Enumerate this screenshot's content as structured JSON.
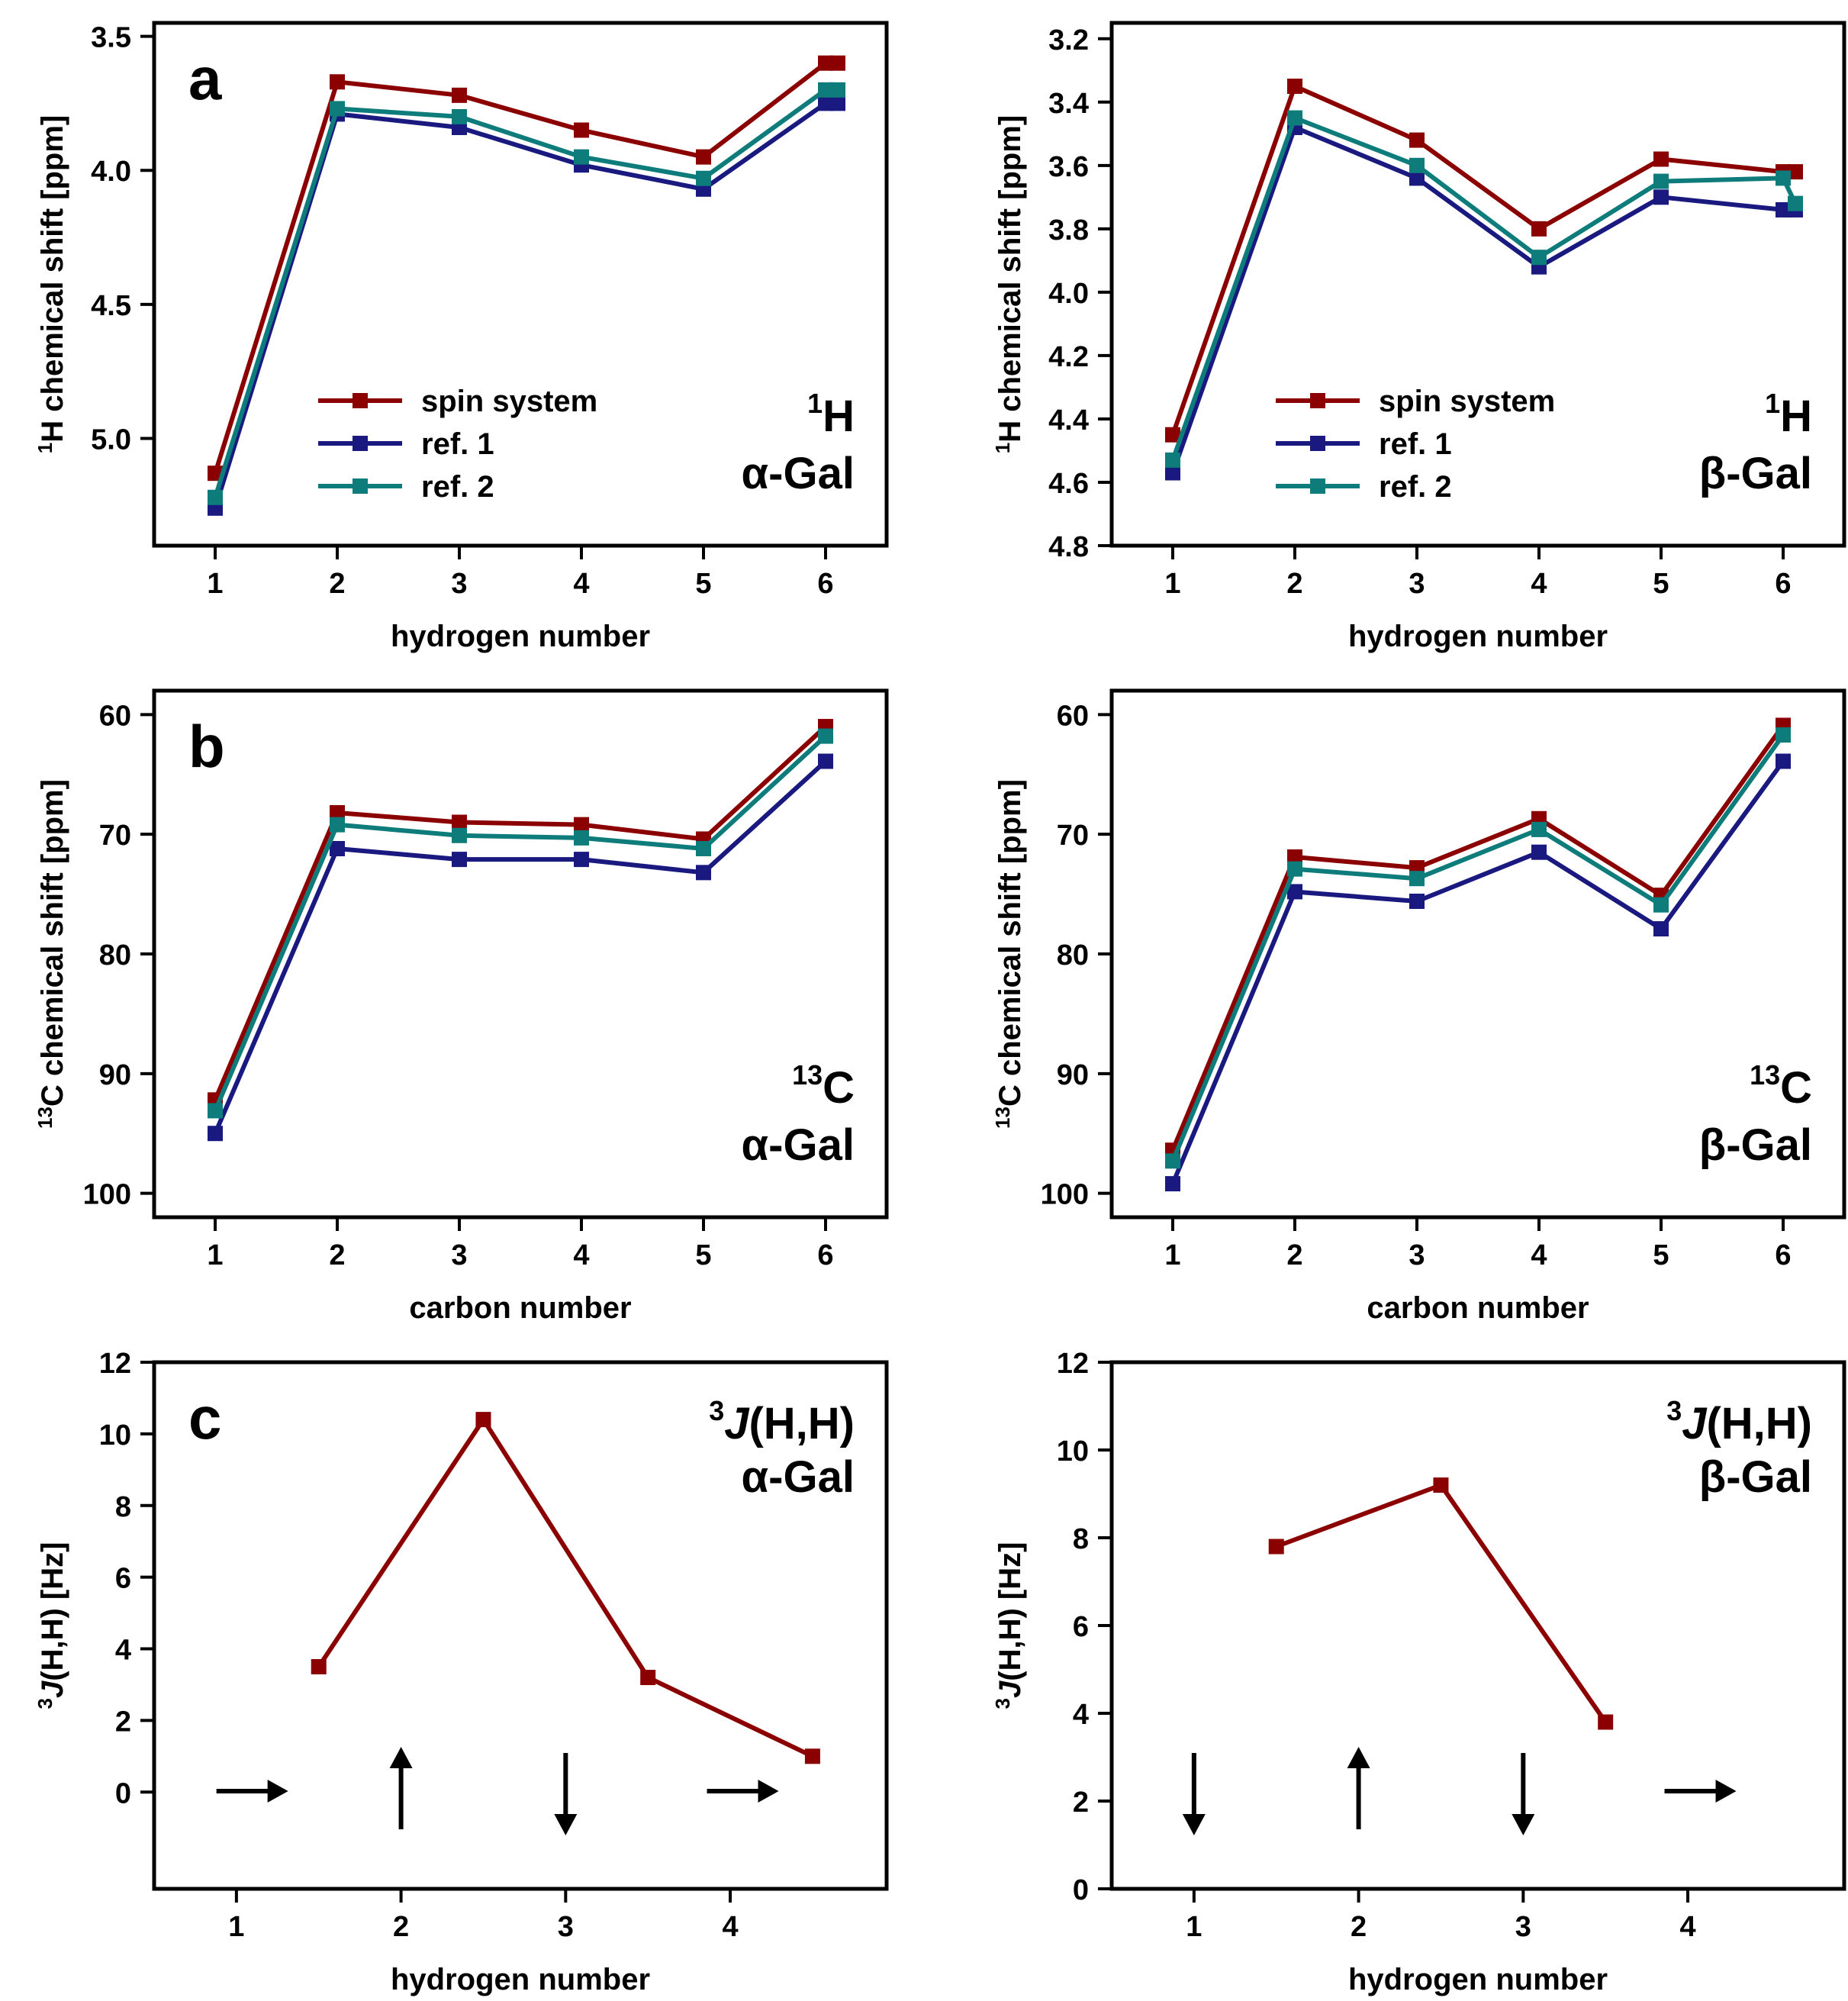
{
  "colors": {
    "spin": "#8b0000",
    "ref1": "#191980",
    "ref2": "#0e7c7b",
    "axis": "#000000"
  },
  "chart_data": [
    {
      "id": "a-left",
      "type": "line",
      "panel_letter": "a",
      "corner_label_main": "H",
      "corner_label_sup": "1",
      "corner_label_sub": "α-Gal",
      "xlabel": "hydrogen number",
      "ylabel_sup": "1",
      "ylabel": "H chemical shift  [ppm]",
      "xlim": [
        0.5,
        6.5
      ],
      "ylim": [
        5.4,
        3.45
      ],
      "y_inverted": true,
      "xticks": [
        1,
        2,
        3,
        4,
        5,
        6
      ],
      "yticks": [
        3.5,
        4.0,
        4.5,
        5.0
      ],
      "ytick_labels": [
        "3.5",
        "4.0",
        "4.5",
        "5.0"
      ],
      "legend_position": "lower-center",
      "series": [
        {
          "name": "spin system",
          "color_key": "spin",
          "x": [
            1,
            2,
            3,
            4,
            5,
            6,
            6.1
          ],
          "y": [
            5.13,
            3.67,
            3.72,
            3.85,
            3.95,
            3.6,
            3.6
          ]
        },
        {
          "name": "ref. 1",
          "color_key": "ref1",
          "x": [
            1,
            2,
            3,
            4,
            5,
            6,
            6.1
          ],
          "y": [
            5.26,
            3.79,
            3.84,
            3.98,
            4.07,
            3.75,
            3.75
          ]
        },
        {
          "name": "ref. 2",
          "color_key": "ref2",
          "x": [
            1,
            2,
            3,
            4,
            5,
            6,
            6.1
          ],
          "y": [
            5.22,
            3.77,
            3.8,
            3.95,
            4.03,
            3.7,
            3.7
          ]
        }
      ]
    },
    {
      "id": "a-right",
      "type": "line",
      "panel_letter": "",
      "corner_label_main": "H",
      "corner_label_sup": "1",
      "corner_label_sub": "β-Gal",
      "xlabel": "hydrogen number",
      "ylabel_sup": "1",
      "ylabel": "H chemical shift  [ppm]",
      "xlim": [
        0.5,
        6.5
      ],
      "ylim": [
        4.8,
        3.15
      ],
      "y_inverted": true,
      "xticks": [
        1,
        2,
        3,
        4,
        5,
        6
      ],
      "yticks": [
        3.2,
        3.4,
        3.6,
        3.8,
        4.0,
        4.2,
        4.4,
        4.6,
        4.8
      ],
      "ytick_labels": [
        "3.2",
        "3.4",
        "3.6",
        "3.8",
        "4.0",
        "4.2",
        "4.4",
        "4.6",
        "4.8"
      ],
      "legend_position": "lower-center",
      "series": [
        {
          "name": "spin system",
          "color_key": "spin",
          "x": [
            1,
            2,
            3,
            4,
            5,
            6,
            6.1
          ],
          "y": [
            4.45,
            3.35,
            3.52,
            3.8,
            3.58,
            3.62,
            3.62
          ]
        },
        {
          "name": "ref. 1",
          "color_key": "ref1",
          "x": [
            1,
            2,
            3,
            4,
            5,
            6,
            6.1
          ],
          "y": [
            4.57,
            3.48,
            3.64,
            3.92,
            3.7,
            3.74,
            3.74
          ]
        },
        {
          "name": "ref. 2",
          "color_key": "ref2",
          "x": [
            1,
            2,
            3,
            4,
            5,
            6,
            6.1
          ],
          "y": [
            4.53,
            3.45,
            3.6,
            3.89,
            3.65,
            3.64,
            3.72
          ]
        }
      ]
    },
    {
      "id": "b-left",
      "type": "line",
      "panel_letter": "b",
      "corner_label_main": "C",
      "corner_label_sup": "13",
      "corner_label_sub": "α-Gal",
      "xlabel": "carbon number",
      "ylabel_sup": "13",
      "ylabel": "C chemical shift  [ppm]",
      "xlim": [
        0.5,
        6.5
      ],
      "ylim": [
        102,
        58
      ],
      "y_inverted": true,
      "xticks": [
        1,
        2,
        3,
        4,
        5,
        6
      ],
      "yticks": [
        60,
        70,
        80,
        90,
        100
      ],
      "ytick_labels": [
        "60",
        "70",
        "80",
        "90",
        "100"
      ],
      "legend_position": "none",
      "series": [
        {
          "name": "spin system",
          "color_key": "spin",
          "x": [
            1,
            2,
            3,
            4,
            5,
            6
          ],
          "y": [
            92.2,
            68.2,
            69.0,
            69.2,
            70.4,
            61.0
          ]
        },
        {
          "name": "ref. 1",
          "color_key": "ref1",
          "x": [
            1,
            2,
            3,
            4,
            5,
            6
          ],
          "y": [
            95.0,
            71.2,
            72.1,
            72.1,
            73.2,
            63.9
          ]
        },
        {
          "name": "ref. 2",
          "color_key": "ref2",
          "x": [
            1,
            2,
            3,
            4,
            5,
            6
          ],
          "y": [
            93.1,
            69.2,
            70.1,
            70.3,
            71.2,
            61.8
          ]
        }
      ]
    },
    {
      "id": "b-right",
      "type": "line",
      "panel_letter": "",
      "corner_label_main": "C",
      "corner_label_sup": "13",
      "corner_label_sub": "β-Gal",
      "xlabel": "carbon number",
      "ylabel_sup": "13",
      "ylabel": "C chemical shift  [ppm]",
      "xlim": [
        0.5,
        6.5
      ],
      "ylim": [
        102,
        58
      ],
      "y_inverted": true,
      "xticks": [
        1,
        2,
        3,
        4,
        5,
        6
      ],
      "yticks": [
        60,
        70,
        80,
        90,
        100
      ],
      "ytick_labels": [
        "60",
        "70",
        "80",
        "90",
        "100"
      ],
      "legend_position": "none",
      "series": [
        {
          "name": "spin system",
          "color_key": "spin",
          "x": [
            1,
            2,
            3,
            4,
            5,
            6
          ],
          "y": [
            96.4,
            71.9,
            72.8,
            68.7,
            75.1,
            60.9
          ]
        },
        {
          "name": "ref. 1",
          "color_key": "ref1",
          "x": [
            1,
            2,
            3,
            4,
            5,
            6
          ],
          "y": [
            99.2,
            74.8,
            75.6,
            71.5,
            77.9,
            63.9
          ]
        },
        {
          "name": "ref. 2",
          "color_key": "ref2",
          "x": [
            1,
            2,
            3,
            4,
            5,
            6
          ],
          "y": [
            97.3,
            72.9,
            73.7,
            69.6,
            75.9,
            61.7
          ]
        }
      ]
    },
    {
      "id": "c-left",
      "type": "line",
      "panel_letter": "c",
      "corner_label_main": "J(H,H)",
      "corner_label_sup": "3",
      "corner_label_sub": "α-Gal",
      "xlabel": "hydrogen number",
      "ylabel_sup": "3",
      "ylabel_italic": "J",
      "ylabel": "(H,H)  [Hz]",
      "xlim": [
        0.5,
        4.95
      ],
      "ylim": [
        -2.7,
        12
      ],
      "y_inverted": false,
      "xticks": [
        1,
        2,
        3,
        4
      ],
      "yticks": [
        0,
        2,
        4,
        6,
        8,
        10,
        12
      ],
      "ytick_labels": [
        "0",
        "2",
        "4",
        "6",
        "8",
        "10",
        "12"
      ],
      "legend_position": "none",
      "arrows": [
        {
          "x": 1.05,
          "dir": "right"
        },
        {
          "x": 2,
          "dir": "up"
        },
        {
          "x": 3,
          "dir": "down"
        },
        {
          "x": 4.03,
          "dir": "right"
        }
      ],
      "series": [
        {
          "name": "spin system",
          "color_key": "spin",
          "x": [
            1.5,
            2.5,
            3.5,
            4.5
          ],
          "y": [
            3.5,
            10.4,
            3.2,
            1.0
          ]
        }
      ]
    },
    {
      "id": "c-right",
      "type": "line",
      "panel_letter": "",
      "corner_label_main": "J(H,H)",
      "corner_label_sup": "3",
      "corner_label_sub": "β-Gal",
      "xlabel": "hydrogen number",
      "ylabel_sup": "3",
      "ylabel_italic": "J",
      "ylabel": "(H,H)  [Hz]",
      "xlim": [
        0.5,
        4.95
      ],
      "ylim": [
        0,
        12
      ],
      "y_inverted": false,
      "xticks": [
        1,
        2,
        3,
        4
      ],
      "yticks": [
        0,
        2,
        4,
        6,
        8,
        10,
        12
      ],
      "ytick_labels": [
        "0",
        "2",
        "4",
        "6",
        "8",
        "10",
        "12"
      ],
      "legend_position": "none",
      "arrows": [
        {
          "x": 1,
          "dir": "down"
        },
        {
          "x": 2,
          "dir": "up"
        },
        {
          "x": 3,
          "dir": "down"
        },
        {
          "x": 4.03,
          "dir": "right"
        }
      ],
      "series": [
        {
          "name": "spin system",
          "color_key": "spin",
          "x": [
            1.5,
            2.5,
            3.5
          ],
          "y": [
            7.8,
            9.2,
            3.8
          ]
        }
      ]
    }
  ]
}
